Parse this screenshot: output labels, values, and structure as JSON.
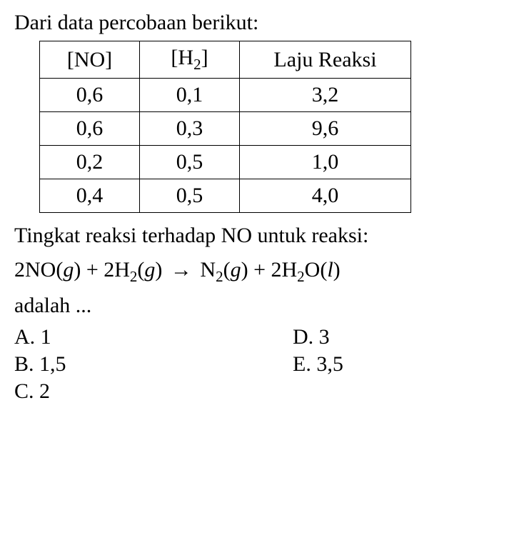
{
  "intro": "Dari data percobaan berikut:",
  "table": {
    "headers": {
      "col1_open": "[",
      "col1_base": "NO",
      "col1_close": "]",
      "col2_open": "[",
      "col2_base": "H",
      "col2_sub": "2",
      "col2_close": "]",
      "col3": "Laju Reaksi"
    },
    "rows": [
      {
        "no": "0,6",
        "h2": "0,1",
        "rate": "3,2"
      },
      {
        "no": "0,6",
        "h2": "0,3",
        "rate": "9,6"
      },
      {
        "no": "0,2",
        "h2": "0,5",
        "rate": "1,0"
      },
      {
        "no": "0,4",
        "h2": "0,5",
        "rate": "4,0"
      }
    ]
  },
  "question_line1": "Tingkat reaksi terhadap NO untuk reaksi:",
  "equation": {
    "t1": "2NO(",
    "t1g": "g",
    "t2": ") + 2H",
    "s1": "2",
    "t3": "(",
    "t3g": "g",
    "t4": ") ",
    "arrow": "→",
    "t5": " N",
    "s2": "2",
    "t6": "(",
    "t6g": "g",
    "t7": ") + 2H",
    "s3": "2",
    "t8": "O(",
    "t8l": "l",
    "t9": ")"
  },
  "question_line2": "adalah ...",
  "options": {
    "a": "A. 1",
    "b": "B.  1,5",
    "c": "C. 2",
    "d": "D. 3",
    "e": "E. 3,5"
  },
  "colors": {
    "background": "#ffffff",
    "text": "#000000",
    "border": "#000000"
  },
  "fontsize": 30
}
